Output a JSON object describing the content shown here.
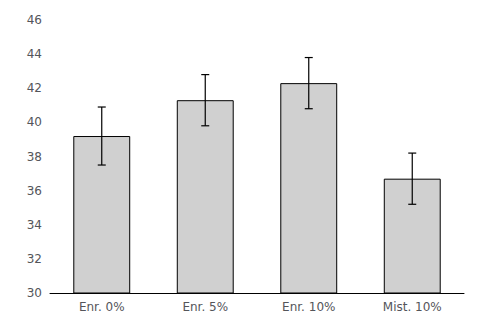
{
  "chart_data": {
    "type": "bar",
    "categories": [
      "Enr. 0%",
      "Enr. 5%",
      "Enr. 10%",
      "Mist. 10%"
    ],
    "values": [
      39.2,
      41.3,
      42.3,
      36.7
    ],
    "errors": [
      1.7,
      1.5,
      1.5,
      1.5
    ],
    "color": "#d0d0d0",
    "ylim": [
      30,
      46
    ],
    "yticks": [
      30,
      32,
      34,
      36,
      38,
      40,
      42,
      44,
      46
    ],
    "grid": false
  }
}
